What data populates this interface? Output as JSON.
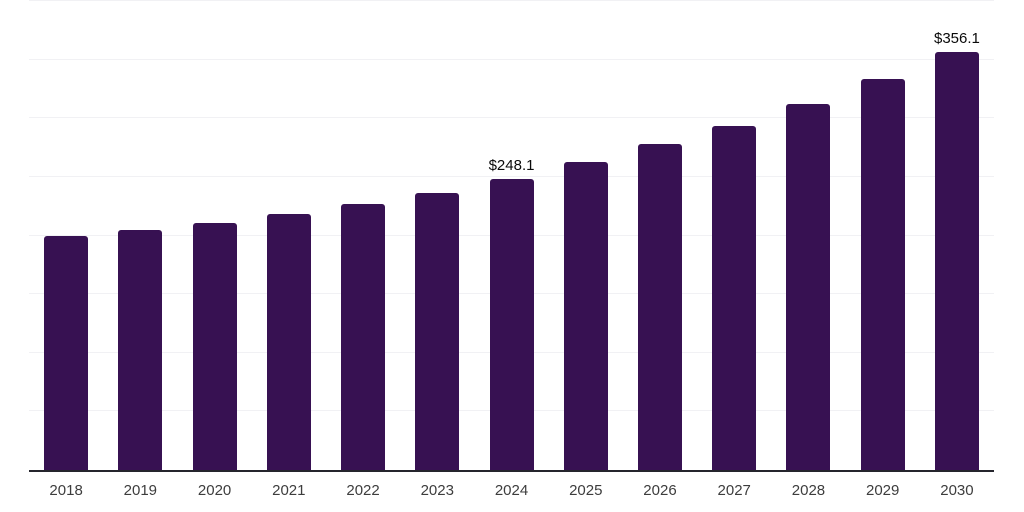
{
  "chart_data": {
    "type": "bar",
    "title": "",
    "xlabel": "",
    "ylabel": "",
    "categories": [
      "2018",
      "2019",
      "2020",
      "2021",
      "2022",
      "2023",
      "2024",
      "2025",
      "2026",
      "2027",
      "2028",
      "2029",
      "2030"
    ],
    "values": [
      199.5,
      204.7,
      211.1,
      218.3,
      226.9,
      236.2,
      248.1,
      262.4,
      277.7,
      293.1,
      312.4,
      333.5,
      356.1
    ],
    "labeled_points": [
      {
        "category": "2024",
        "text": "$248.1"
      },
      {
        "category": "2030",
        "text": "$356.1"
      }
    ],
    "value_prefix": "$",
    "ylim": [
      0,
      400
    ],
    "grid_step": 50,
    "grid": "horizontal-only",
    "y_tick_labels": "none",
    "legend": "none",
    "bar_color": "#371152"
  },
  "style": {
    "background_color": "#ffffff",
    "grid_color": "#f1f1f4",
    "axis_color": "#25252d",
    "tick_label_color": "#3d3d3d",
    "value_label_color": "#0a0a0a"
  }
}
